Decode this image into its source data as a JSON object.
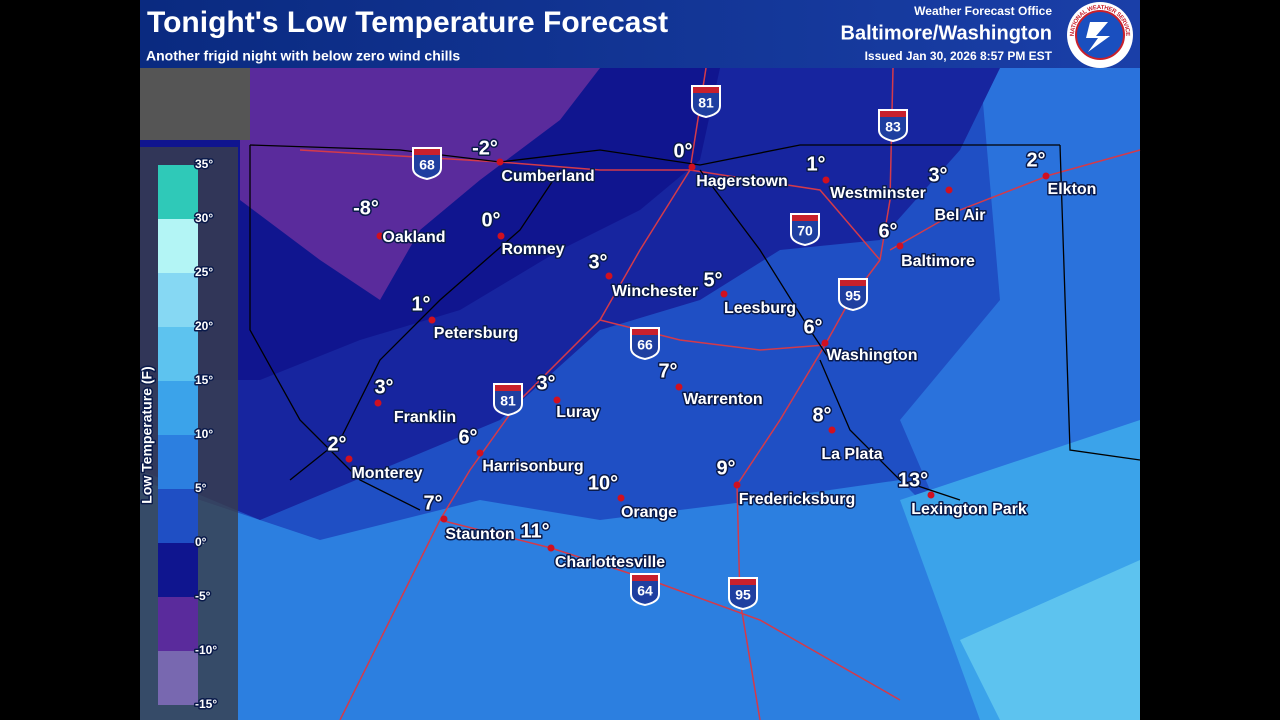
{
  "header": {
    "title": "Tonight's Low Temperature Forecast",
    "subtitle": "Another frigid night with below zero wind chills",
    "office_label": "Weather Forecast Office",
    "office": "Baltimore/Washington",
    "issued": "Issued Jan 30, 2026 8:57 PM EST",
    "logo_text": "NATIONAL WEATHER SERVICE"
  },
  "legend": {
    "title": "Low Temperature (F)",
    "ticks": [
      {
        "value": 35,
        "label": "35°"
      },
      {
        "value": 30,
        "label": "30°"
      },
      {
        "value": 25,
        "label": "25°"
      },
      {
        "value": 20,
        "label": "20°"
      },
      {
        "value": 15,
        "label": "15°"
      },
      {
        "value": 10,
        "label": "10°"
      },
      {
        "value": 5,
        "label": "5°"
      },
      {
        "value": 0,
        "label": "0°"
      },
      {
        "value": -5,
        "label": "-5°"
      },
      {
        "value": -10,
        "label": "-10°"
      },
      {
        "value": -15,
        "label": "-15°"
      }
    ],
    "colors": [
      "#2fc9b8",
      "#b3f5f5",
      "#86d8f3",
      "#5dc3ef",
      "#3ba3ea",
      "#2c7fe0",
      "#1f4fc4",
      "#0f158f",
      "#5a2b9c",
      "#7868b0"
    ]
  },
  "cities": [
    {
      "name": "Cumberland",
      "low": {
        "value": -2,
        "label": "-2°"
      }
    },
    {
      "name": "Hagerstown",
      "low": {
        "value": 0,
        "label": "0°"
      }
    },
    {
      "name": "Westminster",
      "low": {
        "value": 1,
        "label": "1°"
      }
    },
    {
      "name": "Bel Air",
      "low": {
        "value": 3,
        "label": "3°"
      }
    },
    {
      "name": "Elkton",
      "low": {
        "value": 2,
        "label": "2°"
      }
    },
    {
      "name": "Oakland",
      "low": {
        "value": -8,
        "label": "-8°"
      }
    },
    {
      "name": "Romney",
      "low": {
        "value": 0,
        "label": "0°"
      }
    },
    {
      "name": "Winchester",
      "low": {
        "value": 3,
        "label": "3°"
      }
    },
    {
      "name": "Leesburg",
      "low": {
        "value": 5,
        "label": "5°"
      }
    },
    {
      "name": "Baltimore",
      "low": {
        "value": 6,
        "label": "6°"
      }
    },
    {
      "name": "Petersburg",
      "low": {
        "value": 1,
        "label": "1°"
      }
    },
    {
      "name": "Washington",
      "low": {
        "value": 6,
        "label": "6°"
      }
    },
    {
      "name": "Franklin",
      "low": {
        "value": 3,
        "label": "3°"
      }
    },
    {
      "name": "Luray",
      "low": {
        "value": 3,
        "label": "3°"
      }
    },
    {
      "name": "Warrenton",
      "low": {
        "value": 7,
        "label": "7°"
      }
    },
    {
      "name": "Monterey",
      "low": {
        "value": 2,
        "label": "2°"
      }
    },
    {
      "name": "Harrisonburg",
      "low": {
        "value": 6,
        "label": "6°"
      }
    },
    {
      "name": "La Plata",
      "low": {
        "value": 8,
        "label": "8°"
      }
    },
    {
      "name": "Fredericksburg",
      "low": {
        "value": 9,
        "label": "9°"
      }
    },
    {
      "name": "Orange",
      "low": {
        "value": 10,
        "label": "10°"
      }
    },
    {
      "name": "Lexington Park",
      "low": {
        "value": 13,
        "label": "13°"
      }
    },
    {
      "name": "Staunton",
      "low": {
        "value": 7,
        "label": "7°"
      }
    },
    {
      "name": "Charlottesville",
      "low": {
        "value": 11,
        "label": "11°"
      }
    }
  ],
  "interstates": [
    "81",
    "83",
    "68",
    "70",
    "95",
    "66",
    "81",
    "64",
    "95"
  ]
}
